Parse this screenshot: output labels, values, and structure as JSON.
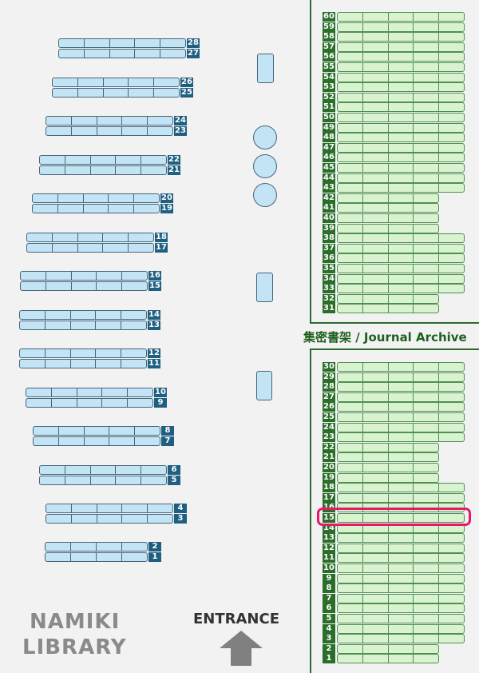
{
  "library_name": [
    "NAMIKI",
    "LIBRARY"
  ],
  "entrance_label": "ENTRANCE",
  "archive_label": "集密書架 / Journal Archive",
  "colors": {
    "general_shelf": "#c3e4f5",
    "archive_shelf": "#d9f3d0",
    "highlight": "#e8186d",
    "archive_border": "#2e6b2e"
  },
  "icons": {
    "entrance": "arrow-up-icon"
  },
  "general_shelves": [
    {
      "pair": [
        28,
        27
      ],
      "sections": 5
    },
    {
      "pair": [
        26,
        25
      ],
      "sections": 5
    },
    {
      "pair": [
        24,
        23
      ],
      "sections": 5
    },
    {
      "pair": [
        22,
        21
      ],
      "sections": 5
    },
    {
      "pair": [
        20,
        19
      ],
      "sections": 5
    },
    {
      "pair": [
        18,
        17
      ],
      "sections": 5
    },
    {
      "pair": [
        16,
        15
      ],
      "sections": 5
    },
    {
      "pair": [
        14,
        13
      ],
      "sections": 5
    },
    {
      "pair": [
        12,
        11
      ],
      "sections": 5
    },
    {
      "pair": [
        10,
        9
      ],
      "sections": 5
    },
    {
      "pair": [
        8,
        7
      ],
      "sections": 5
    },
    {
      "pair": [
        6,
        5
      ],
      "sections": 5
    },
    {
      "pair": [
        4,
        3
      ],
      "sections": 5
    },
    {
      "pair": [
        2,
        1
      ],
      "sections": 4
    }
  ],
  "archive_upper": [
    {
      "pair": [
        60,
        59
      ],
      "sections": 5
    },
    {
      "pair": [
        58,
        57
      ],
      "sections": 5
    },
    {
      "pair": [
        56,
        55
      ],
      "sections": 5
    },
    {
      "pair": [
        54,
        53
      ],
      "sections": 5
    },
    {
      "pair": [
        52,
        51
      ],
      "sections": 5
    },
    {
      "pair": [
        50,
        49
      ],
      "sections": 5
    },
    {
      "pair": [
        48,
        47
      ],
      "sections": 5
    },
    {
      "pair": [
        46,
        45
      ],
      "sections": 5
    },
    {
      "pair": [
        44,
        43
      ],
      "sections": 5
    },
    {
      "pair": [
        42,
        41
      ],
      "sections": 4
    },
    {
      "pair": [
        40,
        39
      ],
      "sections": 4
    },
    {
      "pair": [
        38,
        37
      ],
      "sections": 5
    },
    {
      "pair": [
        36,
        35
      ],
      "sections": 5
    },
    {
      "pair": [
        34,
        33
      ],
      "sections": 5
    },
    {
      "pair": [
        32,
        31
      ],
      "sections": 4
    }
  ],
  "archive_lower": [
    {
      "pair": [
        30,
        29
      ],
      "sections": 5
    },
    {
      "pair": [
        28,
        27
      ],
      "sections": 5
    },
    {
      "pair": [
        26,
        25
      ],
      "sections": 5
    },
    {
      "pair": [
        24,
        23
      ],
      "sections": 5
    },
    {
      "pair": [
        22,
        21
      ],
      "sections": 4
    },
    {
      "pair": [
        20,
        19
      ],
      "sections": 4
    },
    {
      "pair": [
        18,
        17
      ],
      "sections": 5
    },
    {
      "pair": [
        16,
        15
      ],
      "sections": 5
    },
    {
      "pair": [
        14,
        13
      ],
      "sections": 5
    },
    {
      "pair": [
        12,
        11
      ],
      "sections": 5
    },
    {
      "pair": [
        10,
        9
      ],
      "sections": 5
    },
    {
      "pair": [
        8,
        7
      ],
      "sections": 5
    },
    {
      "pair": [
        6,
        5
      ],
      "sections": 5
    },
    {
      "pair": [
        4,
        3
      ],
      "sections": 5
    },
    {
      "pair": [
        2,
        1
      ],
      "sections": 4
    }
  ],
  "highlighted_shelf": {
    "area": "archive_lower",
    "number": 15
  }
}
